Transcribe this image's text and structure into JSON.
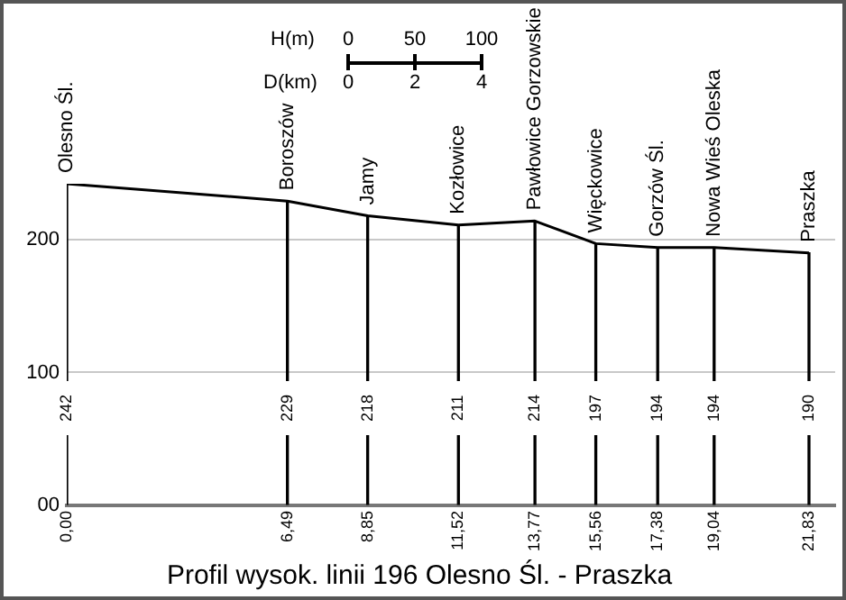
{
  "chart_data": {
    "type": "line",
    "title": "Profil wysok. linii 196 Olesno Śl. - Praszka",
    "x": [
      0,
      6.49,
      8.85,
      11.52,
      13.77,
      15.56,
      17.38,
      19.04,
      21.83
    ],
    "series": [
      {
        "type": "bar",
        "color": "#000000",
        "values": [
          242,
          229,
          218,
          211,
          214,
          197,
          194,
          194,
          190
        ],
        "value_labels": [
          "242",
          "229",
          "218",
          "211",
          "214",
          "197",
          "194",
          "194",
          "190"
        ]
      },
      {
        "color": "#000000",
        "values": [
          242,
          229,
          218,
          211,
          214,
          197,
          194,
          194,
          190
        ]
      }
    ],
    "marker": "none",
    "line_style": "solid",
    "xlim": [
      0,
      22.6
    ],
    "xticks": [
      {
        "value": 0,
        "label": "0,00"
      },
      {
        "value": 6.49,
        "label": "6,49"
      },
      {
        "value": 8.85,
        "label": "8,85"
      },
      {
        "value": 11.52,
        "label": "11,52"
      },
      {
        "value": 13.77,
        "label": "13,77"
      },
      {
        "value": 15.56,
        "label": "15,56"
      },
      {
        "value": 17.38,
        "label": "17,38"
      },
      {
        "value": 19.04,
        "label": "19,04"
      },
      {
        "value": 21.83,
        "label": "21,83"
      }
    ],
    "ylim": [
      0,
      242
    ],
    "yticks": [
      {
        "value": 0,
        "label": "00"
      },
      100,
      200
    ],
    "grid": "y",
    "legend": false,
    "annotations": [
      "H(m)",
      "0",
      "50",
      "100",
      "D(km)",
      "0",
      "2",
      "4",
      {
        "text": "Olesno Śl.",
        "x": 0,
        "y": 242
      },
      {
        "text": "Boroszów",
        "x": 6.49,
        "y": 229
      },
      {
        "text": "Jamy",
        "x": 8.85,
        "y": 218
      },
      {
        "text": "Kozłowice",
        "x": 11.52,
        "y": 211
      },
      {
        "text": "Pawłowice Gorzowskie",
        "x": 13.77,
        "y": 214
      },
      {
        "text": "Więckowice",
        "x": 15.56,
        "y": 197
      },
      {
        "text": "Gorzów Śl.",
        "x": 17.38,
        "y": 194
      },
      {
        "text": "Nowa Wieś Oleska",
        "x": 19.04,
        "y": 194
      },
      {
        "text": "Praszka",
        "x": 21.83,
        "y": 190
      }
    ]
  }
}
